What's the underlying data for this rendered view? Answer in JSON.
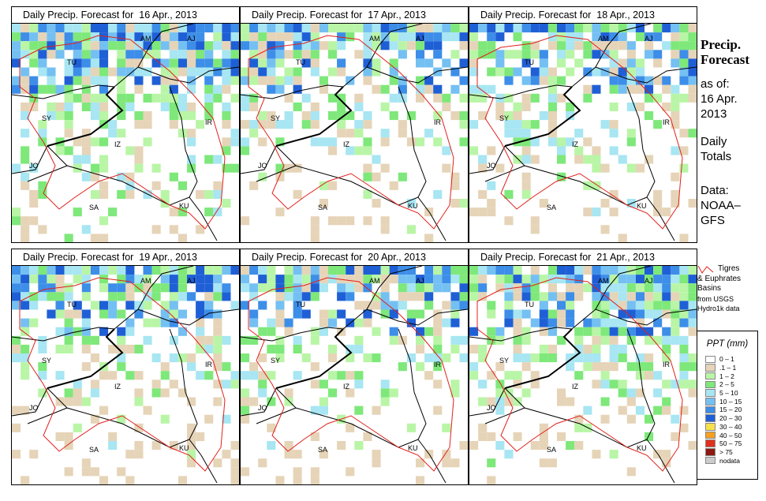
{
  "panels": [
    {
      "title": "Daily Precip. Forecast for  16 Apr., 2013",
      "seed": 1
    },
    {
      "title": "Daily Precip. Forecast for  17 Apr., 2013",
      "seed": 2
    },
    {
      "title": "Daily Precip. Forecast for  18 Apr., 2013",
      "seed": 3
    },
    {
      "title": "Daily Precip. Forecast for  19 Apr., 2013",
      "seed": 4
    },
    {
      "title": "Daily Precip. Forecast for  20 Apr., 2013",
      "seed": 5
    },
    {
      "title": "Daily Precip. Forecast for  21 Apr., 2013",
      "seed": 6
    }
  ],
  "map_labels": {
    "am": "AM",
    "aj": "AJ",
    "tu": "TU",
    "sy": "SY",
    "ir": "IR",
    "jo": "JO",
    "sa": "SA",
    "ku": "KU",
    "iz": "IZ"
  },
  "side": {
    "heading1": "Precip.",
    "heading2": "Forecast",
    "asof": "as of:",
    "date1": "16 Apr.",
    "date2": "2013",
    "daily1": "Daily",
    "daily2": "Totals",
    "data1": "Data:",
    "data2": "NOAA–",
    "data3": "GFS"
  },
  "basin_legend": {
    "line1": "Tigres",
    "line2": "& Euphrates",
    "line3": "Basins",
    "line4": "from USGS",
    "line5": "Hydro1k data"
  },
  "legend": {
    "title": "PPT (mm)",
    "items": [
      {
        "label": "0 – 1",
        "color": "#ffffff"
      },
      {
        "label": ".1 – 1",
        "color": "#e6d4b8"
      },
      {
        "label": "1 – 2",
        "color": "#b9f5a6"
      },
      {
        "label": "2 – 5",
        "color": "#7ee87a"
      },
      {
        "label": "5 – 10",
        "color": "#a7e6f2"
      },
      {
        "label": "10 – 15",
        "color": "#74c0f2"
      },
      {
        "label": "15 – 20",
        "color": "#3d8ee8"
      },
      {
        "label": "20 – 30",
        "color": "#1f5fd6"
      },
      {
        "label": "30 – 40",
        "color": "#f7e04a"
      },
      {
        "label": "40 – 50",
        "color": "#f5a021"
      },
      {
        "label": "50 – 75",
        "color": "#e0301e"
      },
      {
        "label": "> 75",
        "color": "#8c1a12"
      },
      {
        "label": "nodata",
        "color": "#cccccc"
      }
    ]
  }
}
